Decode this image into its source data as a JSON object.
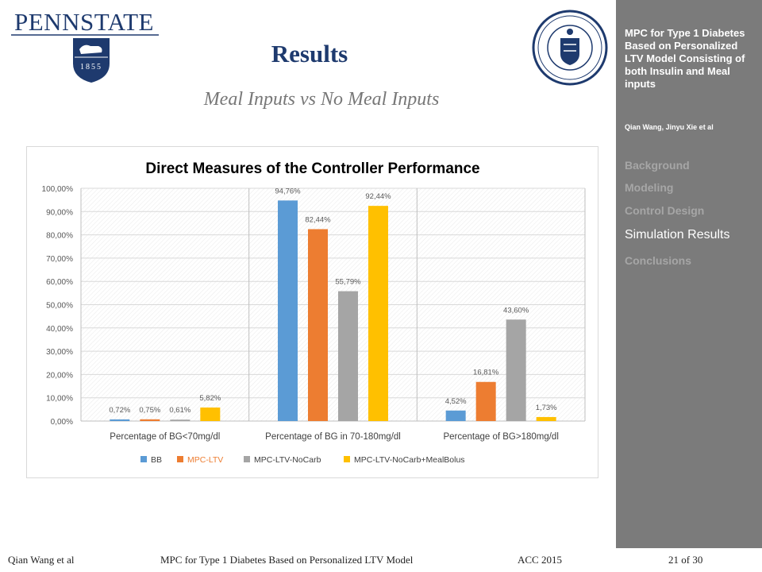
{
  "header": {
    "logo_text": "PENNSTATE",
    "logo_year": "1855",
    "title": "Results",
    "subtitle": "Meal Inputs vs No Meal Inputs"
  },
  "sidebar": {
    "title": "MPC for Type 1 Diabetes Based on Personalized LTV Model Consisting of both Insulin and Meal inputs",
    "authors": "Qian Wang, Jinyu Xie et al",
    "nav": [
      {
        "label": "Background",
        "active": false
      },
      {
        "label": "Modeling",
        "active": false
      },
      {
        "label": "Control Design",
        "active": false
      },
      {
        "label": "Simulation Results",
        "active": true
      },
      {
        "label": "Conclusions",
        "active": false
      }
    ]
  },
  "footer": {
    "author": "Qian Wang et al",
    "talk": "MPC for Type 1 Diabetes Based on Personalized LTV Model",
    "venue": "ACC 2015",
    "page": "21 of 30"
  },
  "chart_data": {
    "type": "bar",
    "title": "Direct Measures of the Controller Performance",
    "categories": [
      "Percentage of BG<70mg/dl",
      "Percentage of BG in 70-180mg/dl",
      "Percentage of BG>180mg/dl"
    ],
    "series": [
      {
        "name": "BB",
        "color": "#5b9bd5",
        "values": [
          0.72,
          94.76,
          4.52
        ],
        "labels": [
          "0,72%",
          "94,76%",
          "4,52%"
        ]
      },
      {
        "name": "MPC-LTV",
        "color": "#ed7d31",
        "values": [
          0.75,
          82.44,
          16.81
        ],
        "labels": [
          "0,75%",
          "82,44%",
          "16,81%"
        ]
      },
      {
        "name": "MPC-LTV-NoCarb",
        "color": "#a5a5a5",
        "values": [
          0.61,
          55.79,
          43.6
        ],
        "labels": [
          "0,61%",
          "55,79%",
          "43,60%"
        ]
      },
      {
        "name": "MPC-LTV-NoCarb+MealBolus",
        "color": "#ffc000",
        "values": [
          5.82,
          92.44,
          1.73
        ],
        "labels": [
          "5,82%",
          "92,44%",
          "1,73%"
        ]
      }
    ],
    "ylim": [
      0,
      100
    ],
    "yticks": [
      "0,00%",
      "10,00%",
      "20,00%",
      "30,00%",
      "40,00%",
      "50,00%",
      "60,00%",
      "70,00%",
      "80,00%",
      "90,00%",
      "100,00%"
    ],
    "legend_position": "bottom",
    "grid": true
  }
}
